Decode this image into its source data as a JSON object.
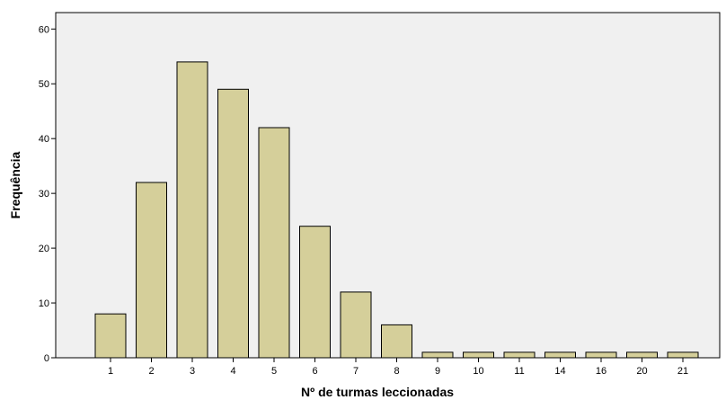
{
  "chart_data": {
    "type": "bar",
    "categories": [
      "1",
      "2",
      "3",
      "4",
      "5",
      "6",
      "7",
      "8",
      "9",
      "10",
      "11",
      "14",
      "16",
      "20",
      "21"
    ],
    "values": [
      8,
      32,
      54,
      49,
      42,
      24,
      12,
      6,
      1,
      1,
      1,
      1,
      1,
      1,
      1
    ],
    "xlabel": "Nº de turmas leccionadas",
    "ylabel": "Frequência",
    "ylim": [
      0,
      63
    ],
    "yticks": [
      0,
      10,
      20,
      30,
      40,
      50,
      60
    ],
    "grid": false,
    "legend": "none",
    "colors": {
      "bar_fill": "#d5cf9a",
      "bar_stroke": "#000000",
      "plot_background": "#f0f0f0",
      "page_background": "#ffffff"
    }
  }
}
